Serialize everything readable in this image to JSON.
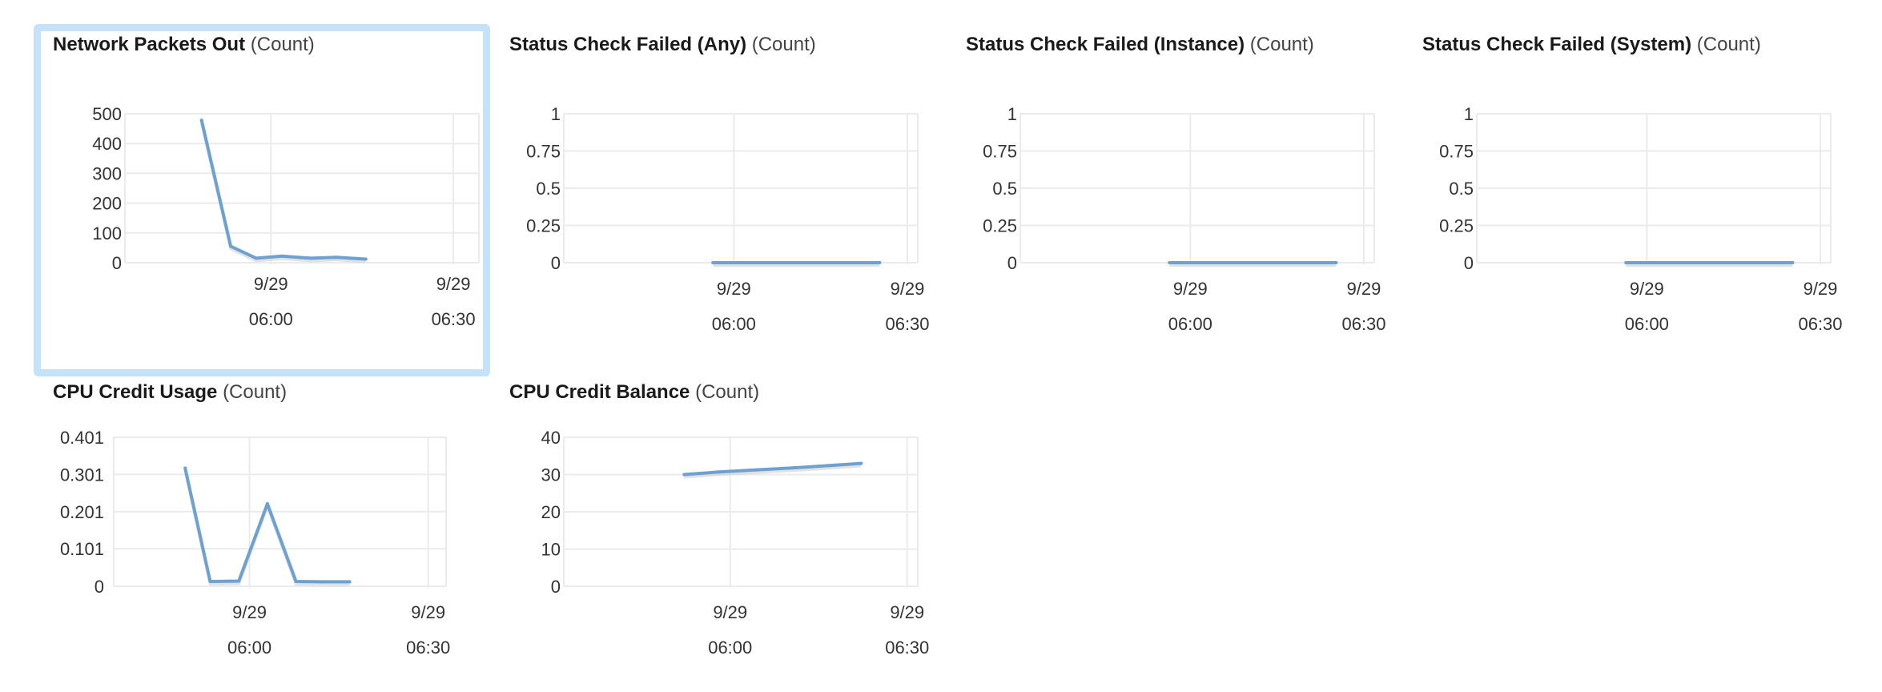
{
  "colors": {
    "line": "#6da1d1",
    "grid": "#ebebeb",
    "axis_text": "#333333",
    "selected_border": "#c6e2fb"
  },
  "panels": [
    {
      "metric": "Network Packets Out",
      "unit": "(Count)",
      "selected": true
    },
    {
      "metric": "Status Check Failed (Any)",
      "unit": "(Count)"
    },
    {
      "metric": "Status Check Failed (Instance)",
      "unit": "(Count)"
    },
    {
      "metric": "Status Check Failed (System)",
      "unit": "(Count)"
    },
    {
      "metric": "CPU Credit Usage",
      "unit": "(Count)"
    },
    {
      "metric": "CPU Credit Balance",
      "unit": "(Count)"
    }
  ],
  "chart_data": [
    {
      "type": "line",
      "title": "Network Packets Out (Count)",
      "ylim": [
        0,
        500
      ],
      "yticks": [
        "500",
        "400",
        "300",
        "200",
        "100",
        "0"
      ],
      "ytick_values": [
        500,
        400,
        300,
        200,
        100,
        0
      ],
      "xlim": [
        5.6,
        6.57
      ],
      "xticks": [
        {
          "date": "9/29",
          "time": "06:00",
          "value": 6.0
        },
        {
          "date": "9/29",
          "time": "06:30",
          "value": 6.5
        }
      ],
      "series": [
        {
          "x": [
            5.81,
            5.89,
            5.96,
            6.03,
            6.11,
            6.18,
            6.26
          ],
          "values": [
            478,
            55,
            15,
            22,
            15,
            18,
            12
          ]
        }
      ]
    },
    {
      "type": "line",
      "title": "Status Check Failed (Any) (Count)",
      "ylim": [
        0,
        1
      ],
      "yticks": [
        "1",
        "0.75",
        "0.5",
        "0.25",
        "0"
      ],
      "ytick_values": [
        1,
        0.75,
        0.5,
        0.25,
        0
      ],
      "xlim": [
        5.51,
        6.53
      ],
      "xticks": [
        {
          "date": "9/29",
          "time": "06:00",
          "value": 6.0
        },
        {
          "date": "9/29",
          "time": "06:30",
          "value": 6.5
        }
      ],
      "series": [
        {
          "x": [
            5.94,
            6.42
          ],
          "values": [
            0,
            0
          ]
        }
      ]
    },
    {
      "type": "line",
      "title": "Status Check Failed (Instance) (Count)",
      "ylim": [
        0,
        1
      ],
      "yticks": [
        "1",
        "0.75",
        "0.5",
        "0.25",
        "0"
      ],
      "ytick_values": [
        1,
        0.75,
        0.5,
        0.25,
        0
      ],
      "xlim": [
        5.51,
        6.53
      ],
      "xticks": [
        {
          "date": "9/29",
          "time": "06:00",
          "value": 6.0
        },
        {
          "date": "9/29",
          "time": "06:30",
          "value": 6.5
        }
      ],
      "series": [
        {
          "x": [
            5.94,
            6.42
          ],
          "values": [
            0,
            0
          ]
        }
      ]
    },
    {
      "type": "line",
      "title": "Status Check Failed (System) (Count)",
      "ylim": [
        0,
        1
      ],
      "yticks": [
        "1",
        "0.75",
        "0.5",
        "0.25",
        "0"
      ],
      "ytick_values": [
        1,
        0.75,
        0.5,
        0.25,
        0
      ],
      "xlim": [
        5.51,
        6.53
      ],
      "xticks": [
        {
          "date": "9/29",
          "time": "06:00",
          "value": 6.0
        },
        {
          "date": "9/29",
          "time": "06:30",
          "value": 6.5
        }
      ],
      "series": [
        {
          "x": [
            5.94,
            6.42
          ],
          "values": [
            0,
            0
          ]
        }
      ]
    },
    {
      "type": "line",
      "title": "CPU Credit Usage (Count)",
      "ylim": [
        0,
        0.401
      ],
      "yticks": [
        "0.401",
        "0.301",
        "0.201",
        "0.101",
        "0"
      ],
      "ytick_values": [
        0.401,
        0.301,
        0.201,
        0.101,
        0
      ],
      "xlim": [
        5.62,
        6.55
      ],
      "xticks": [
        {
          "date": "9/29",
          "time": "06:00",
          "value": 6.0
        },
        {
          "date": "9/29",
          "time": "06:30",
          "value": 6.5
        }
      ],
      "series": [
        {
          "x": [
            5.82,
            5.89,
            5.97,
            6.05,
            6.13,
            6.2,
            6.28
          ],
          "values": [
            0.318,
            0.013,
            0.014,
            0.222,
            0.013,
            0.012,
            0.012
          ]
        }
      ]
    },
    {
      "type": "line",
      "title": "CPU Credit Balance (Count)",
      "ylim": [
        0,
        40
      ],
      "yticks": [
        "40",
        "30",
        "20",
        "10",
        "0"
      ],
      "ytick_values": [
        40,
        30,
        20,
        10,
        0
      ],
      "xlim": [
        5.53,
        6.53
      ],
      "xticks": [
        {
          "date": "9/29",
          "time": "06:00",
          "value": 6.0
        },
        {
          "date": "9/29",
          "time": "06:30",
          "value": 6.5
        }
      ],
      "series": [
        {
          "x": [
            5.87,
            5.97,
            6.08,
            6.18,
            6.28,
            6.37
          ],
          "values": [
            30.0,
            30.7,
            31.3,
            31.8,
            32.4,
            33.0
          ]
        }
      ]
    }
  ]
}
